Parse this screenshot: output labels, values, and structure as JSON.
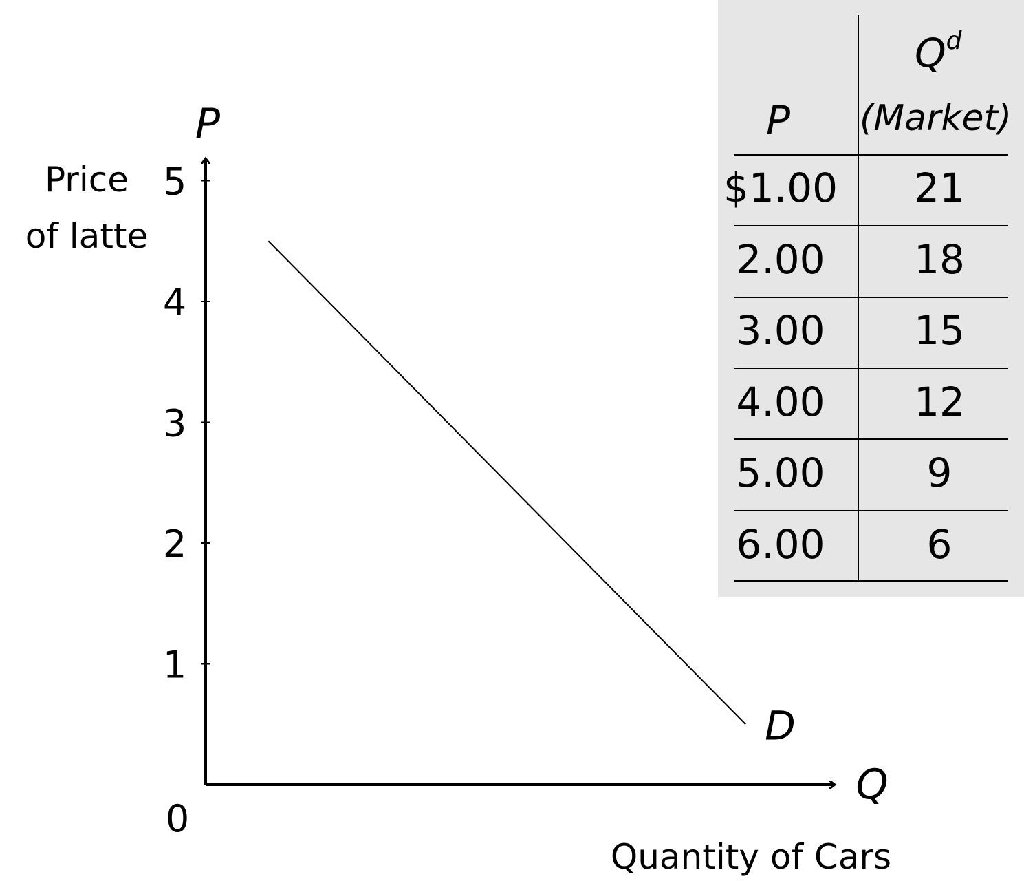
{
  "chart_data": {
    "type": "line",
    "y_axis_symbol": "P",
    "x_axis_symbol": "Q",
    "ylabel_lines": [
      "Price",
      "of latte"
    ],
    "xlabel": "Quantity of Cars",
    "origin_label": "0",
    "y_ticks": [
      "1",
      "2",
      "3",
      "4",
      "5"
    ],
    "ylim": [
      0,
      5.4
    ],
    "series": [
      {
        "name": "D",
        "points": [
          {
            "q_frac": 0.1,
            "p": 4.5
          },
          {
            "q_frac": 0.86,
            "p": 0.5
          }
        ]
      }
    ],
    "table": {
      "headers": {
        "p": "P",
        "qd_main": "Q",
        "qd_sup": "d",
        "qd_sub": "(Market)"
      },
      "rows": [
        {
          "p": "$1.00",
          "qd": "21"
        },
        {
          "p": "2.00",
          "qd": "18"
        },
        {
          "p": "3.00",
          "qd": "15"
        },
        {
          "p": "4.00",
          "qd": "12"
        },
        {
          "p": "5.00",
          "qd": "9"
        },
        {
          "p": "6.00",
          "qd": "6"
        }
      ]
    }
  }
}
